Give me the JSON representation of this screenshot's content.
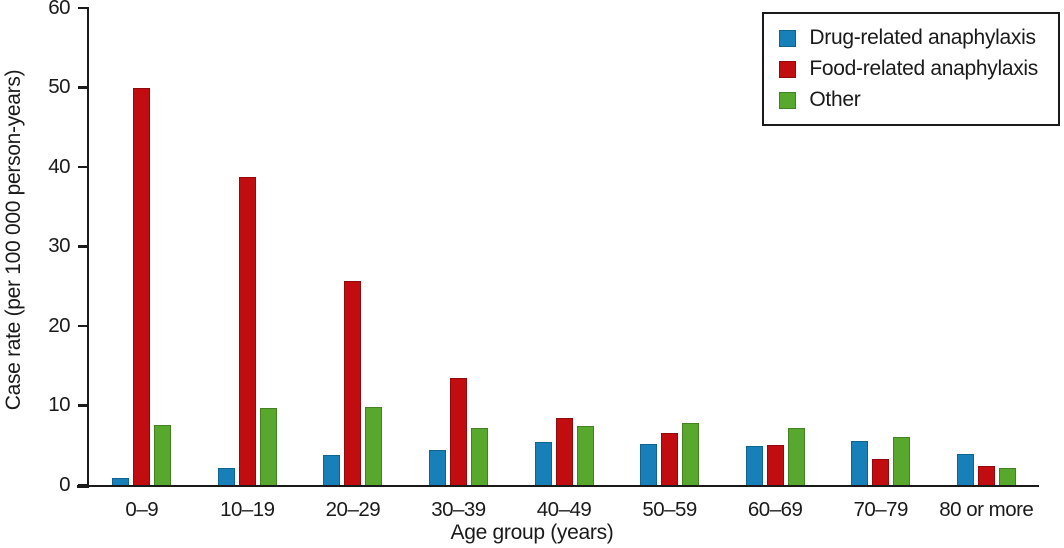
{
  "chart_data": {
    "type": "bar",
    "title": "",
    "xlabel": "Age group (years)",
    "ylabel": "Case rate (per 100 000 person-years)",
    "ylim": [
      0,
      60
    ],
    "yticks": [
      0,
      10,
      20,
      30,
      40,
      50,
      60
    ],
    "grid": false,
    "legend_position": "top-right",
    "categories": [
      "0–9",
      "10–19",
      "20–29",
      "30–39",
      "40–49",
      "50–59",
      "60–69",
      "70–79",
      "80 or more"
    ],
    "series": [
      {
        "name": "Drug-related anaphylaxis",
        "color": "#1780b8",
        "edge_color": "#0f648f",
        "values": [
          0.9,
          2.2,
          3.8,
          4.4,
          5.4,
          5.2,
          4.9,
          5.5,
          3.9
        ]
      },
      {
        "name": "Food-related anaphylaxis",
        "color": "#c20d10",
        "edge_color": "#940a0c",
        "values": [
          50.0,
          38.8,
          25.6,
          13.5,
          8.4,
          6.5,
          5.0,
          3.3,
          2.4
        ]
      },
      {
        "name": "Other",
        "color": "#57a82c",
        "edge_color": "#428021",
        "values": [
          7.5,
          9.7,
          9.8,
          7.2,
          7.4,
          7.8,
          7.2,
          6.0,
          2.1
        ]
      }
    ],
    "colors": {
      "axis": "#1a1a1a",
      "text": "#1a1a1a",
      "background": "#ffffff"
    }
  }
}
